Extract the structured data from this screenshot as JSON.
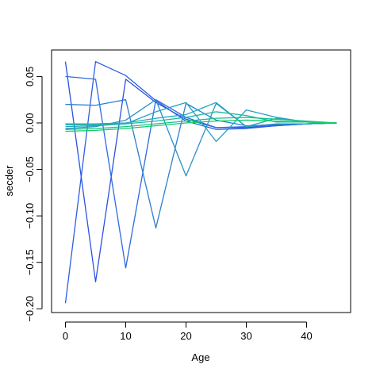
{
  "chart_data": {
    "type": "line",
    "title": "",
    "xlabel": "Age",
    "ylabel": "secder",
    "xlim": [
      -2.3,
      47.3
    ],
    "ylim": [
      -0.204,
      0.0785
    ],
    "x_ticks": [
      {
        "value": 0,
        "label": "0"
      },
      {
        "value": 10,
        "label": "10"
      },
      {
        "value": 20,
        "label": "20"
      },
      {
        "value": 30,
        "label": "30"
      },
      {
        "value": 40,
        "label": "40"
      }
    ],
    "y_ticks": [
      {
        "value": 0.05,
        "label": "0.05"
      },
      {
        "value": 0.0,
        "label": "0.00"
      },
      {
        "value": -0.05,
        "label": "−0.05"
      },
      {
        "value": -0.1,
        "label": "−0.10"
      },
      {
        "value": -0.15,
        "label": "−0.15"
      },
      {
        "value": -0.2,
        "label": "−0.20"
      }
    ],
    "grid": false,
    "legend": "none",
    "x": [
      0,
      5,
      10,
      15,
      20,
      25,
      30,
      35,
      40,
      45
    ],
    "series": [
      {
        "color": "#2a52e0",
        "values": [
          0.066,
          -0.171,
          0.047,
          0.022,
          0.004,
          -0.005,
          -0.005,
          -0.003,
          -0.001,
          0.0
        ]
      },
      {
        "color": "#2d5fe3",
        "values": [
          -0.194,
          0.066,
          0.051,
          0.024,
          0.002,
          -0.007,
          -0.006,
          -0.003,
          -0.001,
          0.0
        ]
      },
      {
        "color": "#2e6adf",
        "values": [
          0.05,
          0.047,
          -0.156,
          0.025,
          0.006,
          -0.005,
          -0.004,
          -0.002,
          -0.001,
          0.0
        ]
      },
      {
        "color": "#2a7fd3",
        "values": [
          0.02,
          0.019,
          0.025,
          -0.113,
          0.021,
          0.003,
          -0.003,
          -0.002,
          -0.001,
          0.0
        ]
      },
      {
        "color": "#2a90cc",
        "values": [
          -0.006,
          -0.004,
          0.003,
          0.025,
          -0.057,
          0.021,
          -0.004,
          -0.001,
          -0.001,
          0.0
        ]
      },
      {
        "color": "#22a0c6",
        "values": [
          -0.004,
          -0.003,
          -0.001,
          0.012,
          0.022,
          -0.02,
          0.014,
          0.006,
          0.001,
          0.0
        ]
      },
      {
        "color": "#1faab6",
        "values": [
          -0.001,
          -0.001,
          0.0,
          0.005,
          0.009,
          0.022,
          -0.004,
          0.005,
          0.001,
          0.0
        ]
      },
      {
        "color": "#1db8a2",
        "values": [
          -0.002,
          -0.002,
          -0.001,
          0.002,
          0.006,
          0.012,
          0.008,
          0.001,
          0.001,
          0.0
        ]
      },
      {
        "color": "#18c187",
        "values": [
          -0.007,
          -0.006,
          -0.004,
          -0.001,
          0.002,
          0.005,
          0.006,
          0.004,
          0.002,
          0.0
        ]
      },
      {
        "color": "#12cc6a",
        "values": [
          -0.009,
          -0.008,
          -0.006,
          -0.003,
          0.0,
          0.002,
          0.003,
          0.002,
          0.001,
          0.0
        ]
      }
    ]
  }
}
